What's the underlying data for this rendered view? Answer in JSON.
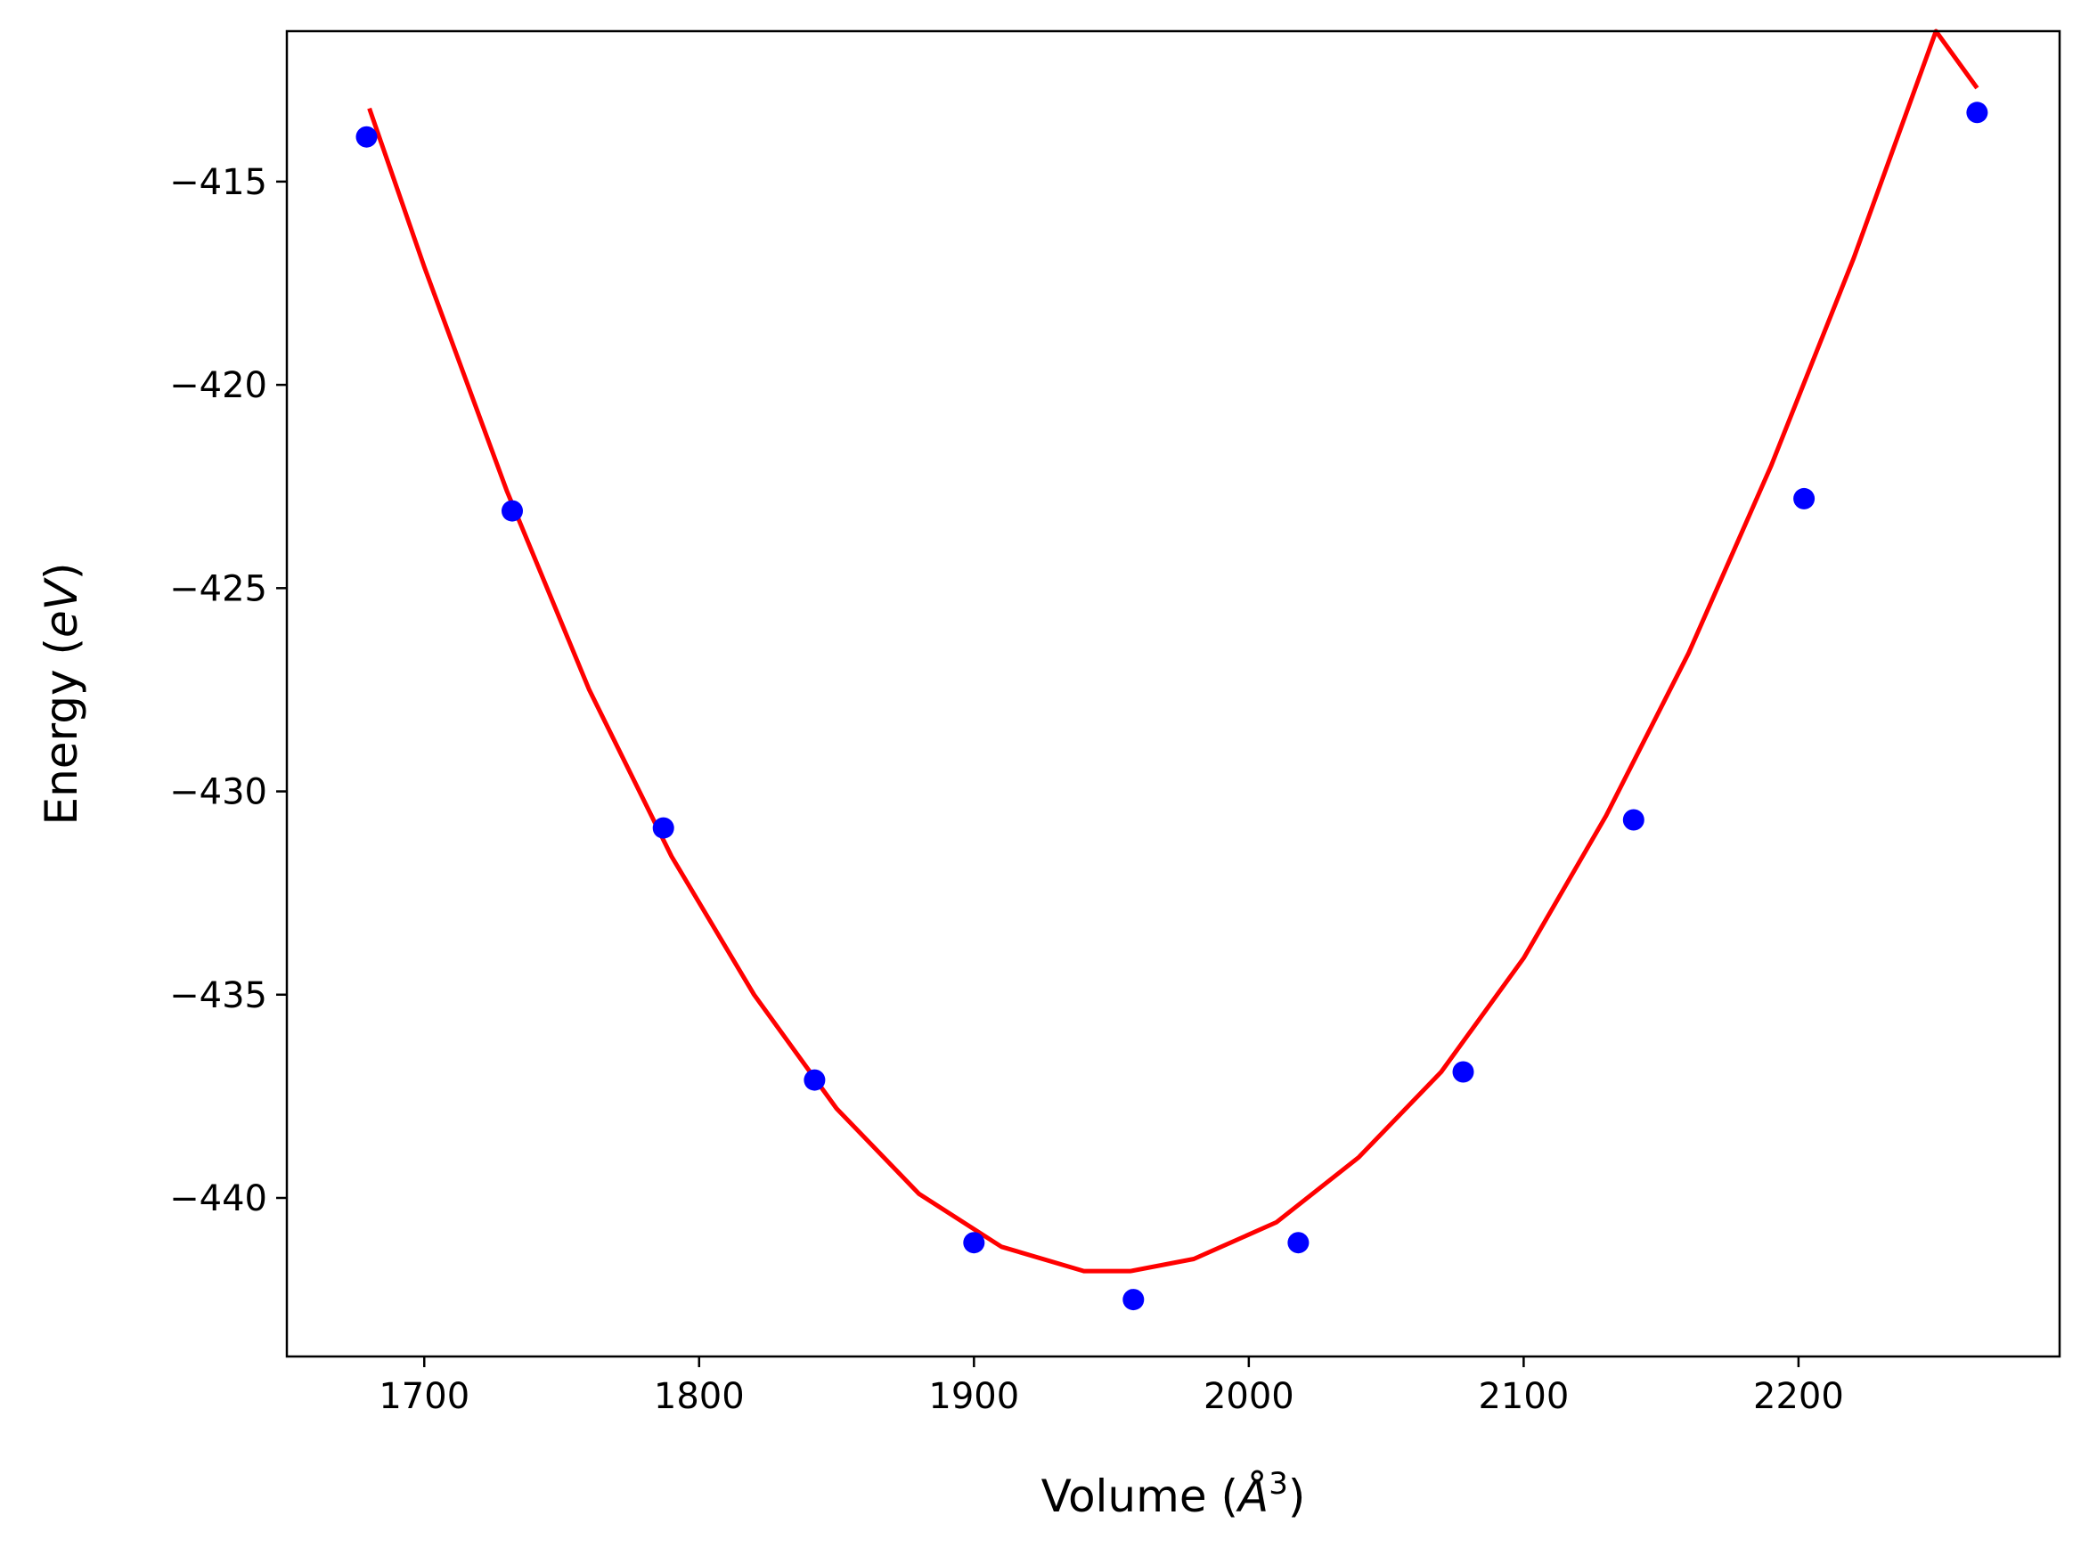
{
  "chart_data": {
    "type": "scatter",
    "xlabel_prefix": "Volume (",
    "xlabel_unit": "Å",
    "xlabel_sup": "3",
    "xlabel_suffix": ")",
    "ylabel_prefix": "Energy (",
    "ylabel_unit": "eV",
    "ylabel_suffix": ")",
    "xlim": [
      1650,
      2295
    ],
    "ylim": [
      -443.9,
      -411.3
    ],
    "x_ticks": [
      1700,
      1800,
      1900,
      2000,
      2100,
      2200
    ],
    "x_tick_labels": [
      "1700",
      "1800",
      "1900",
      "2000",
      "2100",
      "2200"
    ],
    "y_ticks": [
      -415,
      -420,
      -425,
      -430,
      -435,
      -440
    ],
    "y_tick_labels": [
      "−415",
      "−420",
      "−425",
      "−430",
      "−435",
      "−440"
    ],
    "grid": false,
    "series": [
      {
        "kind": "points",
        "color": "#0000ff",
        "x": [
          1679,
          1732,
          1787,
          1842,
          1900,
          1958,
          2018,
          2078,
          2140,
          2202,
          2265
        ],
        "y": [
          -413.9,
          -423.1,
          -430.9,
          -437.1,
          -441.1,
          -442.5,
          -441.1,
          -436.9,
          -430.7,
          -422.8,
          -413.3
        ]
      },
      {
        "kind": "fit",
        "color": "#ff0000",
        "x": [
          1680,
          1700,
          1730,
          1760,
          1790,
          1820,
          1850,
          1880,
          1910,
          1940,
          1957,
          1980,
          2010,
          2040,
          2070,
          2100,
          2130,
          2160,
          2190,
          2220,
          2250,
          2265
        ],
        "y": [
          -413.2,
          -417.1,
          -422.6,
          -427.5,
          -431.6,
          -435.0,
          -437.8,
          -439.9,
          -441.2,
          -441.8,
          -441.8,
          -441.5,
          -440.6,
          -439.0,
          -436.9,
          -434.1,
          -430.6,
          -426.6,
          -422.0,
          -416.9,
          -411.3,
          -412.7
        ]
      }
    ]
  }
}
